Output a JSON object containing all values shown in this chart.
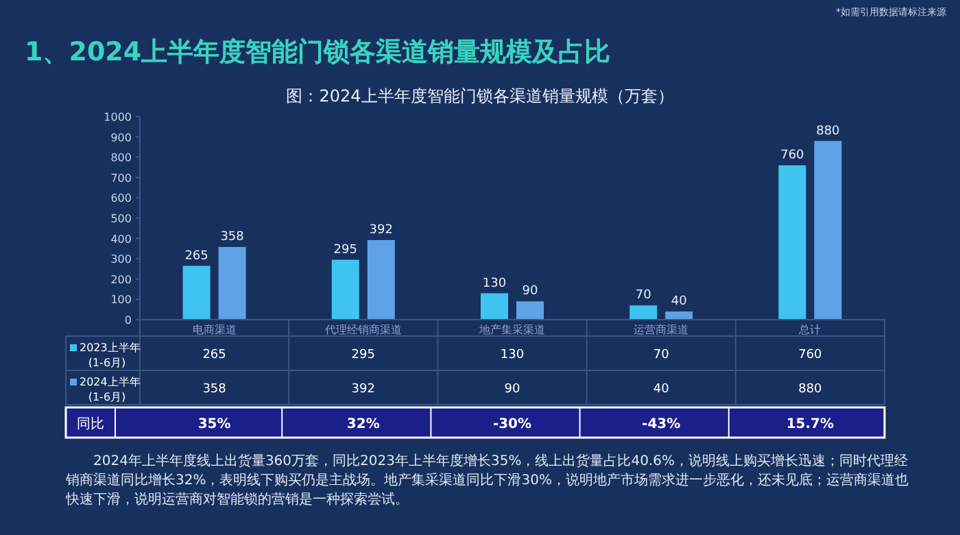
{
  "chart_data": {
    "type": "bar",
    "title": "1、2024上半年度智能门锁各渠道销量规模及占比",
    "subtitle": "图：2024上半年度智能门锁各渠道销量规模（万套）",
    "categories": [
      "电商渠道",
      "代理经销商渠道",
      "地产集采渠道",
      "运营商渠道",
      "总计"
    ],
    "series": [
      {
        "name": "2023上半年\n(1-6月)",
        "color": "#3fc4f0",
        "values": [
          265,
          295,
          130,
          70,
          760
        ],
        "value_labels": [
          "265",
          "295",
          "130",
          "70",
          "760"
        ]
      },
      {
        "name": "2024上半年\n(1-6月)",
        "color": "#5fa3e6",
        "values": [
          358,
          392,
          90,
          40,
          880
        ],
        "value_labels": [
          "358",
          "392",
          "90",
          "40",
          "880"
        ]
      }
    ],
    "ylim": [
      0,
      1000
    ],
    "yticks": [
      0,
      100,
      200,
      300,
      400,
      500,
      600,
      700,
      800,
      900,
      1000
    ],
    "grid": false,
    "legend": "left",
    "annotations": [
      "同比",
      "35%",
      "32%",
      "-30%",
      "-43%",
      "15.7%",
      "*如需引用数据请标注来源",
      "2024年上半年度线上出货量360万套，同比2023年上半年度增长35%，线上出货量占比40.6%，说明线上购买增长迅速；同时代理经销商渠道同比增长32%，表明线下购买仍是主战场。地产集采渠道同比下滑30%，说明地产市场需求进一步恶化，还未见底；运营商渠道也快速下滑，说明运营商对智能锁的营销是一种探索尝试。",
      "265",
      "295",
      "130",
      "70",
      "760",
      "358",
      "392",
      "90",
      "40",
      "880"
    ]
  }
}
